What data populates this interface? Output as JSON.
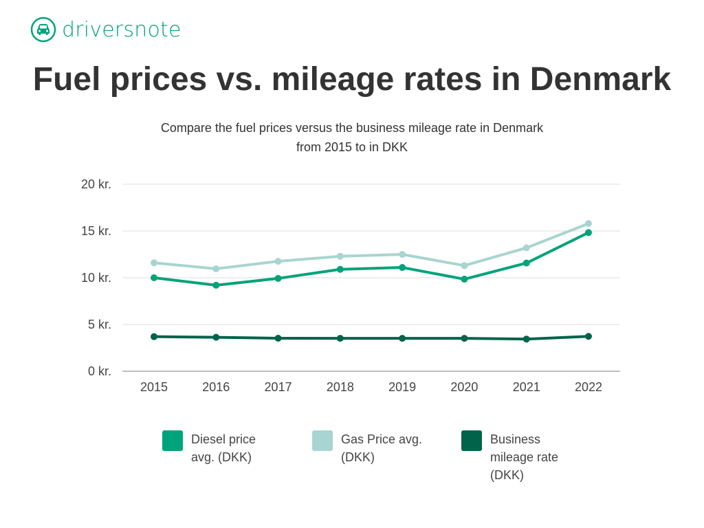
{
  "brand": {
    "name": "driversnote",
    "icon": "car-icon",
    "color": "#00a37a"
  },
  "title": "Fuel prices vs. mileage rates in Denmark",
  "subtitle": [
    "Compare the fuel prices versus the business mileage rate in Denmark",
    "from 2015 to  in DKK"
  ],
  "chart_data": {
    "type": "line",
    "title": "Fuel prices vs. mileage rates in Denmark",
    "x": [
      "2015",
      "2016",
      "2017",
      "2018",
      "2019",
      "2020",
      "2021",
      "2022"
    ],
    "ylim": [
      0,
      20
    ],
    "yticks": [
      0,
      5,
      10,
      15,
      20
    ],
    "ytick_labels": [
      "0 kr.",
      "5 kr.",
      "10 kr.",
      "15 kr.",
      "20 kr."
    ],
    "grid": true,
    "legend_position": "bottom",
    "series": [
      {
        "name": "Gas Price avg. (DKK)",
        "legend_lines": [
          "Gas Price avg.",
          "(DKK)"
        ],
        "color": "#a8d5d1",
        "values": [
          11.6,
          10.96,
          11.76,
          12.3,
          12.5,
          11.3,
          13.2,
          15.8
        ]
      },
      {
        "name": "Diesel price avg. (DKK)",
        "legend_lines": [
          "Diesel price",
          "avg. (DKK)"
        ],
        "color": "#00a37a",
        "values": [
          10.0,
          9.2,
          9.93,
          10.9,
          11.1,
          9.85,
          11.57,
          14.83
        ]
      },
      {
        "name": "Business mileage rate (DKK)",
        "legend_lines": [
          "Business",
          "mileage rate",
          "(DKK)"
        ],
        "color": "#00634a",
        "values": [
          3.7,
          3.63,
          3.53,
          3.52,
          3.52,
          3.52,
          3.44,
          3.73
        ]
      }
    ],
    "legend_order": [
      1,
      0,
      2
    ]
  }
}
